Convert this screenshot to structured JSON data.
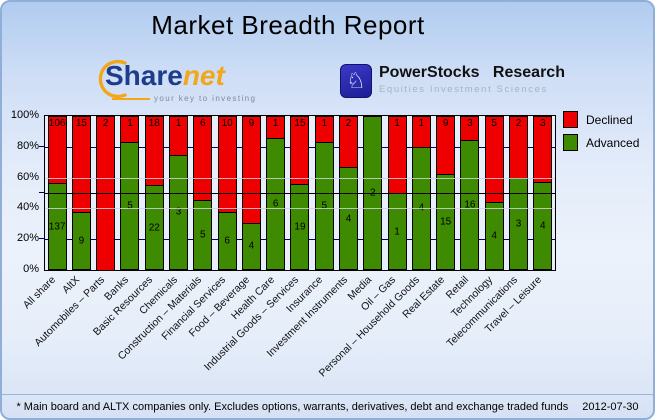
{
  "title": "Market Breadth Report",
  "logos": {
    "sharenet": {
      "text_share": "Share",
      "text_net": "net",
      "tagline": "your key to investing"
    },
    "powerstocks": {
      "knight_icon": "chess-knight",
      "name": "PowerStocks Research",
      "subtitle": "Equities Investment Sciences"
    }
  },
  "legend": [
    {
      "label": "Declined",
      "color": "#ee0000"
    },
    {
      "label": "Advanced",
      "color": "#3e8a00"
    }
  ],
  "chart_data": {
    "type": "bar",
    "stacked": true,
    "normalized_to": "100%",
    "title": "Market Breadth Report",
    "categories": [
      "All share",
      "AltX",
      "Automobiles – Parts",
      "Banks",
      "Basic Resources",
      "Chemicals",
      "Construction – Materials",
      "Financial Services",
      "Food – Beverage",
      "Health Care",
      "Industrial Goods – Services",
      "Insurance",
      "Investment Instruments",
      "Media",
      "Oil – Gas",
      "Personal – Household Goods",
      "Real Estate",
      "Retail",
      "Technology",
      "Telecommunications",
      "Travel – Leisure"
    ],
    "series": [
      {
        "name": "Declined",
        "color": "#ee0000",
        "values": [
          106,
          15,
          2,
          1,
          18,
          1,
          6,
          10,
          9,
          1,
          15,
          1,
          2,
          0,
          1,
          1,
          9,
          3,
          5,
          2,
          3
        ]
      },
      {
        "name": "Advanced",
        "color": "#3e8a00",
        "values": [
          137,
          9,
          0,
          5,
          22,
          3,
          5,
          6,
          4,
          6,
          19,
          5,
          4,
          2,
          1,
          4,
          15,
          16,
          4,
          3,
          4
        ]
      }
    ],
    "y_ticks": [
      "100%",
      "80%",
      "60%",
      "40%",
      "20%",
      "0%"
    ],
    "ylim": [
      0,
      100
    ],
    "reference_line_pct": 50,
    "grid": {
      "navy_lines_pct": [
        20,
        80
      ],
      "gray_lines_pct": [
        40,
        60
      ]
    },
    "legend_position": "top-right"
  },
  "footer": {
    "note": "* Main board and ALTX companies only. Excludes options, warrants, derivatives, debt and exchange traded funds",
    "date": "2012-07-30"
  }
}
